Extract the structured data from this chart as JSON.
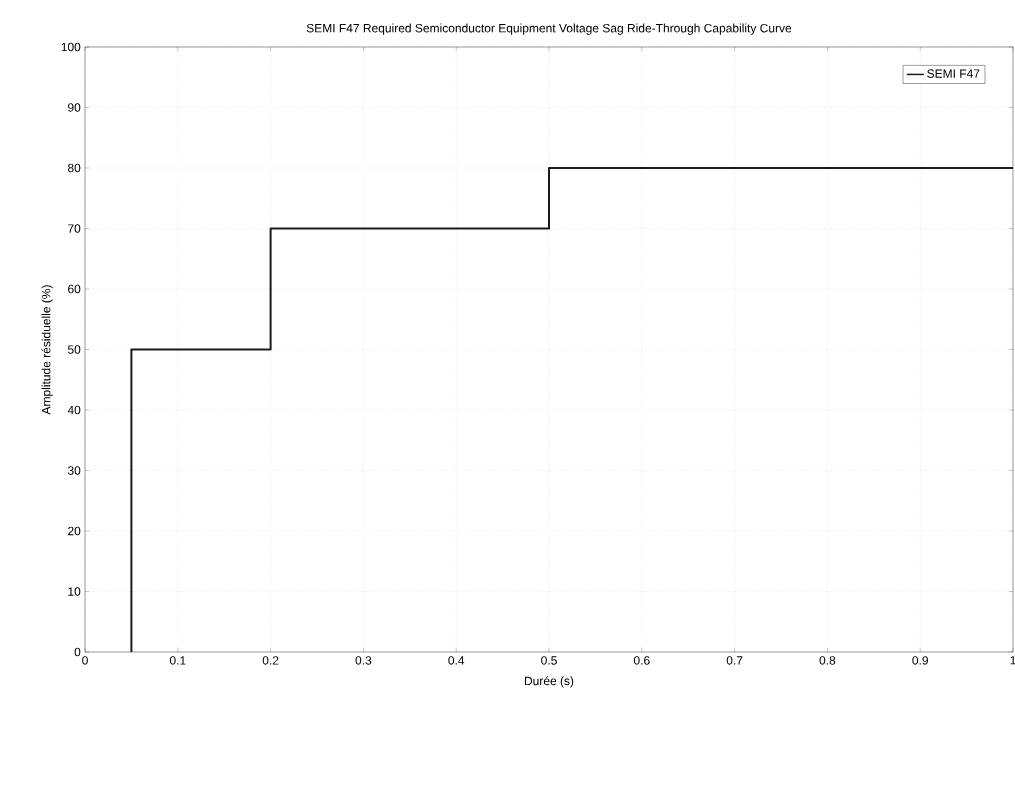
{
  "chart_data": {
    "type": "line",
    "title": "SEMI F47 Required Semiconductor Equipment Voltage Sag Ride-Through Capability Curve",
    "xlabel": "Durée (s)",
    "ylabel": "Amplitude résiduelle (%)",
    "series": [
      {
        "name": "SEMI F47",
        "color": "#1a1a1a",
        "x": [
          0.05,
          0.05,
          0.2,
          0.2,
          0.5,
          0.5,
          1
        ],
        "values": [
          0,
          50,
          50,
          70,
          70,
          80,
          80
        ]
      }
    ],
    "xlim": [
      0,
      1
    ],
    "ylim": [
      0,
      100
    ],
    "xticks": [
      0,
      0.1,
      0.2,
      0.3,
      0.4,
      0.5,
      0.6,
      0.7,
      0.8,
      0.9,
      1
    ],
    "yticks": [
      0,
      10,
      20,
      30,
      40,
      50,
      60,
      70,
      80,
      90,
      100
    ],
    "grid": true,
    "legend": "top right",
    "marker": "none",
    "line_style": "solid"
  }
}
